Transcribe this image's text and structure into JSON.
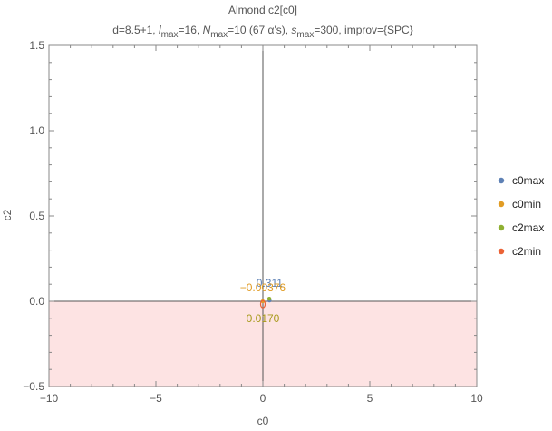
{
  "chart_data": {
    "type": "scatter",
    "title": "Almond c2[c0]",
    "subtitle": {
      "p1": "d=8.5+1, ",
      "l": "l",
      "l_sub": "max",
      "p2": "=16, ",
      "n": "N",
      "n_sub": "max",
      "p3": "=10 (67 α's), ",
      "s": "s",
      "s_sub": "max",
      "p4": "=300, improv={SPC}"
    },
    "xlabel": "c0",
    "ylabel": "c2",
    "xlim": [
      -10,
      10
    ],
    "ylim": [
      -0.5,
      1.5
    ],
    "xticks": [
      -10,
      -5,
      0,
      5,
      10
    ],
    "xtick_labels": [
      "−10",
      "−5",
      "0",
      "5",
      "10"
    ],
    "yticks": [
      -0.5,
      0.0,
      0.5,
      1.0,
      1.5
    ],
    "ytick_labels": [
      "−0.5",
      "0.0",
      "0.5",
      "1.0",
      "1.5"
    ],
    "shaded_region": {
      "y_from": -0.5,
      "y_to": 0.0,
      "color": "#fde3e3"
    },
    "legend_position": "right",
    "series": [
      {
        "name": "c0max",
        "color": "#5e81b5",
        "points": [
          [
            0.311,
            0.005
          ]
        ]
      },
      {
        "name": "c0min",
        "color": "#e19c24",
        "points": [
          [
            -0.00376,
            0.0
          ]
        ]
      },
      {
        "name": "c2max",
        "color": "#8fb032",
        "points": [
          [
            0.3,
            0.015
          ]
        ]
      },
      {
        "name": "c2min",
        "color": "#eb6235",
        "points": [
          [
            0.0,
            -0.017
          ]
        ]
      }
    ],
    "annotations": [
      {
        "text": "0.311",
        "x": 0.311,
        "y": 0.005,
        "color": "#5e81b5",
        "pos": "above"
      },
      {
        "text": "−0.00376",
        "x": -0.00376,
        "y": 0.0,
        "color": "#e19c24",
        "pos": "above"
      },
      {
        "text": "0.0170",
        "x": 0.0,
        "y": -0.017,
        "color": "#a89a1c",
        "pos": "below"
      }
    ]
  }
}
